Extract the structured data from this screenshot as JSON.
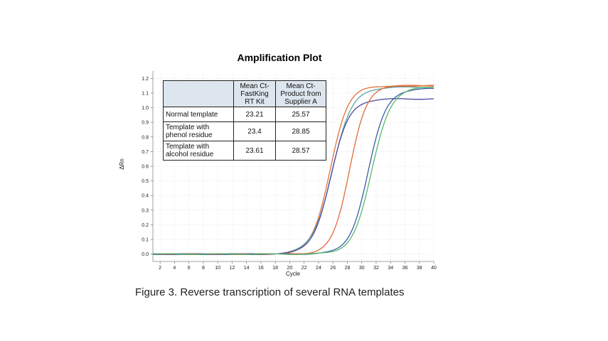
{
  "chart_data": {
    "type": "line",
    "title": "Amplification Plot",
    "xlabel": "Cycle",
    "ylabel": "ΔRn",
    "xlim": [
      1,
      40
    ],
    "ylim": [
      -0.05,
      1.25
    ],
    "xticks": [
      "2",
      "4",
      "6",
      "8",
      "10",
      "12",
      "14",
      "16",
      "18",
      "20",
      "22",
      "24",
      "26",
      "28",
      "30",
      "32",
      "34",
      "36",
      "38",
      "40"
    ],
    "yticks": [
      "0.0",
      "0.1",
      "0.2",
      "0.3",
      "0.4",
      "0.5",
      "0.6",
      "0.7",
      "0.8",
      "0.9",
      "1.0",
      "1.1",
      "1.2"
    ],
    "grid": true,
    "series": [
      {
        "color": "#e8703a",
        "ct": 25.6,
        "plateau": 1.15,
        "k": 0.8
      },
      {
        "color": "#5aa5a0",
        "ct": 25.9,
        "plateau": 1.14,
        "k": 0.72
      },
      {
        "color": "#4b4ba0",
        "ct": 25.7,
        "plateau": 1.06,
        "k": 0.78
      },
      {
        "color": "#e06a3e",
        "ct": 28.3,
        "plateau": 1.15,
        "k": 0.85
      },
      {
        "color": "#3f5aa6",
        "ct": 30.9,
        "plateau": 1.13,
        "k": 0.78
      },
      {
        "color": "#55b86a",
        "ct": 31.4,
        "plateau": 1.14,
        "k": 0.76
      }
    ]
  },
  "table": {
    "headers": [
      "",
      "Mean Ct-\nFastKing\nRT Kit",
      "Mean Ct-\nProduct from\nSupplier A"
    ],
    "rows": [
      {
        "label": "Normal template",
        "fastking": "23.21",
        "supplier_a": "25.57"
      },
      {
        "label": "Template with\nphenol residue",
        "fastking": "23.4",
        "supplier_a": "28.85"
      },
      {
        "label": "Template with\nalcohol residue",
        "fastking": "23.61",
        "supplier_a": "28.57"
      }
    ]
  },
  "caption_fragment": "Figure 3. Reverse transcription of several RNA templates"
}
